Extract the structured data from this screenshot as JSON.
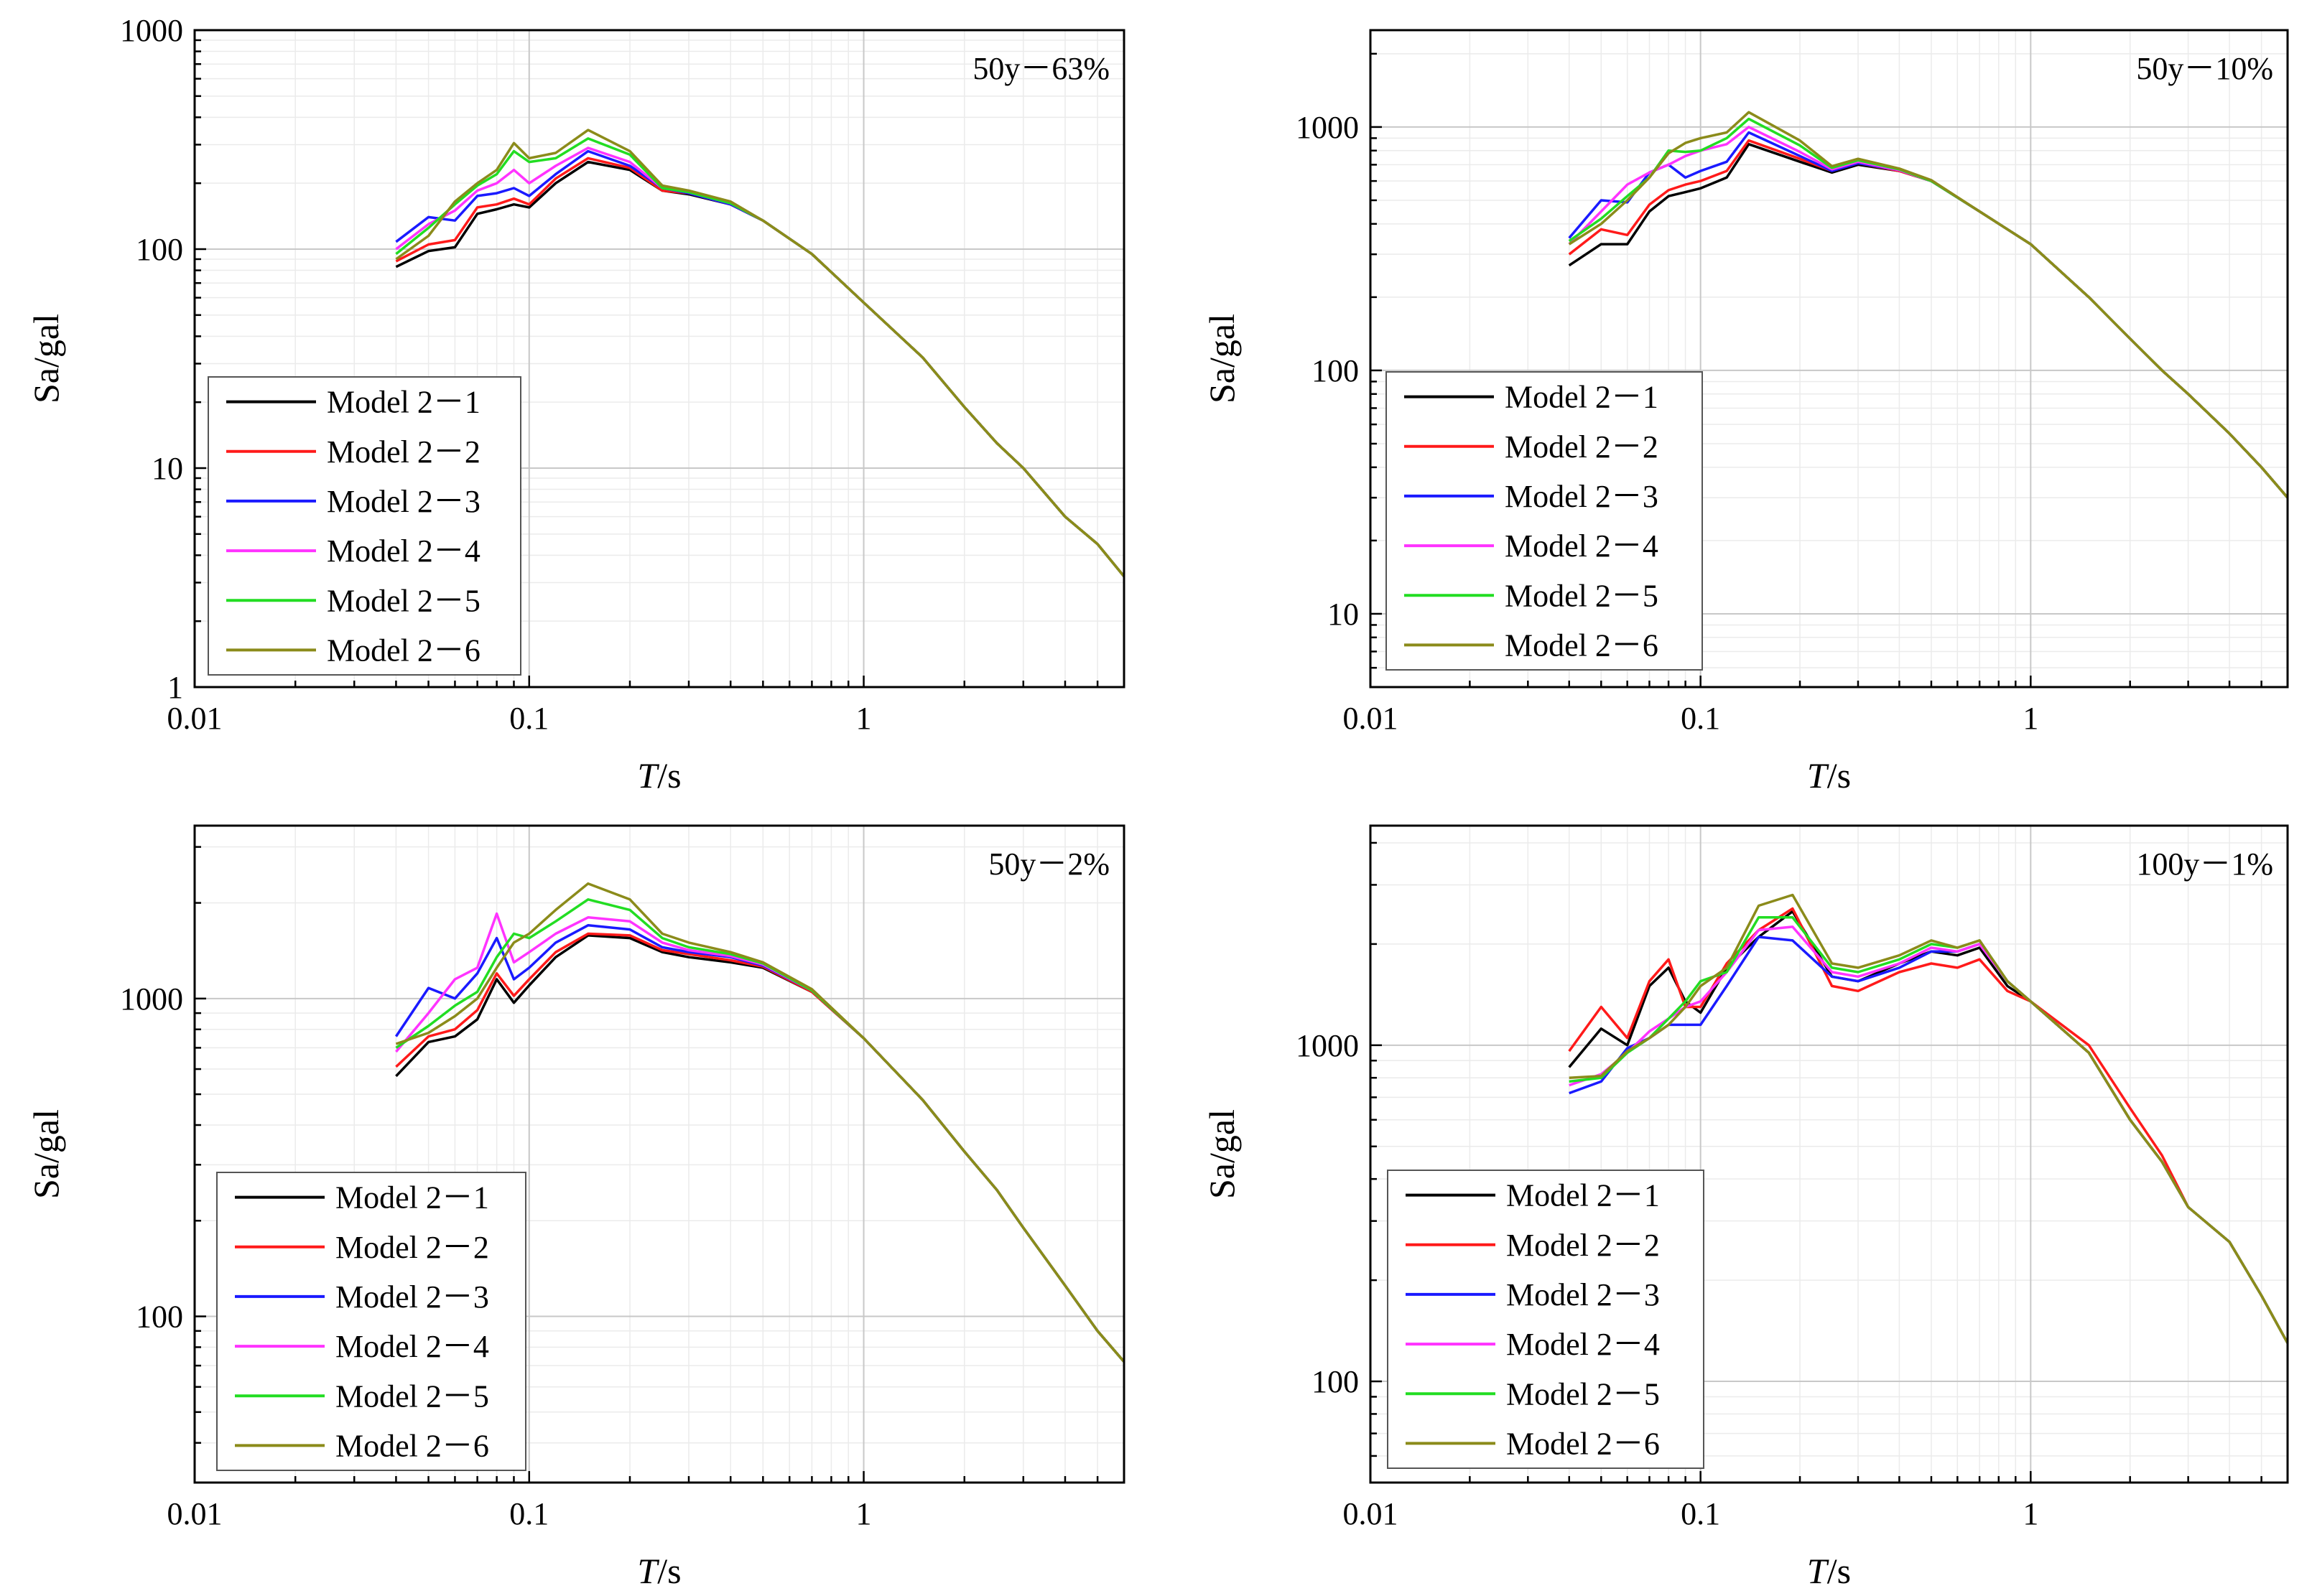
{
  "figure": {
    "series_names": [
      "Model 2－1",
      "Model 2－2",
      "Model 2－3",
      "Model 2－4",
      "Model 2－5",
      "Model 2－6"
    ],
    "series_colors": [
      "#000000",
      "#ff1a1a",
      "#1a1aff",
      "#ff33ff",
      "#22dd22",
      "#8b8b1a"
    ]
  },
  "chart_data": [
    {
      "type": "line",
      "title": "50y－63%",
      "xlabel_italic": "T",
      "xlabel_unit": "/s",
      "ylabel": "Sa/gal",
      "xscale": "log",
      "yscale": "log",
      "xlim": [
        0.01,
        6.0
      ],
      "ylim": [
        1,
        1000
      ],
      "xticks": [
        {
          "v": 0.01,
          "label": "0.01"
        },
        {
          "v": 0.1,
          "label": "0.1"
        },
        {
          "v": 1,
          "label": "1"
        }
      ],
      "yticks": [
        {
          "v": 1,
          "label": "1"
        },
        {
          "v": 10,
          "label": "10"
        },
        {
          "v": 100,
          "label": "100"
        },
        {
          "v": 1000,
          "label": "1000"
        }
      ],
      "legend_position": "bottom-left",
      "x": [
        0.04,
        0.05,
        0.06,
        0.07,
        0.08,
        0.09,
        0.1,
        0.12,
        0.15,
        0.2,
        0.25,
        0.3,
        0.4,
        0.5,
        0.7,
        1.0,
        1.5,
        2.0,
        2.5,
        3.0,
        4.0,
        5.0,
        6.0
      ],
      "series": [
        {
          "name": "Model 2－1",
          "values": [
            83,
            98,
            102,
            145,
            152,
            160,
            155,
            200,
            250,
            230,
            185,
            178,
            160,
            135,
            95,
            57,
            32,
            19,
            13,
            10,
            6,
            4.5,
            3.2
          ]
        },
        {
          "name": "Model 2－2",
          "values": [
            88,
            105,
            110,
            155,
            160,
            170,
            160,
            210,
            260,
            235,
            185,
            180,
            160,
            135,
            95,
            57,
            32,
            19,
            13,
            10,
            6,
            4.5,
            3.2
          ]
        },
        {
          "name": "Model 2－3",
          "values": [
            108,
            140,
            135,
            175,
            180,
            190,
            175,
            220,
            280,
            240,
            190,
            180,
            160,
            135,
            95,
            57,
            32,
            19,
            13,
            10,
            6,
            4.5,
            3.2
          ]
        },
        {
          "name": "Model 2－4",
          "values": [
            100,
            130,
            150,
            185,
            200,
            230,
            200,
            240,
            290,
            250,
            190,
            182,
            162,
            135,
            95,
            57,
            32,
            19,
            13,
            10,
            6,
            4.5,
            3.2
          ]
        },
        {
          "name": "Model 2－5",
          "values": [
            95,
            125,
            160,
            195,
            220,
            280,
            250,
            260,
            320,
            270,
            190,
            182,
            162,
            135,
            95,
            57,
            32,
            19,
            13,
            10,
            6,
            4.5,
            3.2
          ]
        },
        {
          "name": "Model 2－6",
          "values": [
            90,
            115,
            165,
            200,
            230,
            305,
            260,
            275,
            350,
            280,
            195,
            185,
            165,
            135,
            95,
            57,
            32,
            19,
            13,
            10,
            6,
            4.5,
            3.2
          ]
        }
      ]
    },
    {
      "type": "line",
      "title": "50y－10%",
      "xlabel_italic": "T",
      "xlabel_unit": "/s",
      "ylabel": "Sa/gal",
      "xscale": "log",
      "yscale": "log",
      "xlim": [
        0.01,
        6.0
      ],
      "ylim": [
        5,
        2500
      ],
      "xticks": [
        {
          "v": 0.01,
          "label": "0.01"
        },
        {
          "v": 0.1,
          "label": "0.1"
        },
        {
          "v": 1,
          "label": "1"
        }
      ],
      "yticks": [
        {
          "v": 10,
          "label": "10"
        },
        {
          "v": 100,
          "label": "100"
        },
        {
          "v": 1000,
          "label": "1000"
        }
      ],
      "legend_position": "bottom-left",
      "x": [
        0.04,
        0.05,
        0.06,
        0.07,
        0.08,
        0.09,
        0.1,
        0.12,
        0.14,
        0.2,
        0.25,
        0.3,
        0.4,
        0.5,
        0.7,
        1.0,
        1.5,
        2.0,
        2.5,
        3.0,
        4.0,
        5.0,
        6.0
      ],
      "series": [
        {
          "name": "Model 2－1",
          "values": [
            270,
            330,
            330,
            450,
            520,
            540,
            560,
            620,
            850,
            720,
            650,
            700,
            660,
            600,
            450,
            330,
            200,
            135,
            100,
            80,
            55,
            40,
            30
          ]
        },
        {
          "name": "Model 2－2",
          "values": [
            300,
            380,
            360,
            480,
            550,
            580,
            600,
            660,
            880,
            740,
            660,
            710,
            660,
            600,
            450,
            330,
            200,
            135,
            100,
            80,
            55,
            40,
            30
          ]
        },
        {
          "name": "Model 2－3",
          "values": [
            350,
            500,
            490,
            650,
            700,
            620,
            660,
            720,
            950,
            760,
            660,
            710,
            665,
            600,
            450,
            330,
            200,
            135,
            100,
            80,
            55,
            40,
            30
          ]
        },
        {
          "name": "Model 2－4",
          "values": [
            330,
            450,
            580,
            650,
            700,
            760,
            800,
            850,
            1000,
            790,
            670,
            720,
            665,
            600,
            450,
            330,
            200,
            135,
            100,
            80,
            55,
            40,
            30
          ]
        },
        {
          "name": "Model 2－5",
          "values": [
            340,
            420,
            520,
            620,
            800,
            790,
            800,
            900,
            1080,
            840,
            680,
            730,
            670,
            600,
            450,
            330,
            200,
            135,
            100,
            80,
            55,
            40,
            30
          ]
        },
        {
          "name": "Model 2－6",
          "values": [
            330,
            400,
            500,
            620,
            780,
            860,
            900,
            950,
            1150,
            880,
            690,
            740,
            675,
            605,
            450,
            330,
            200,
            135,
            100,
            80,
            55,
            40,
            30
          ]
        }
      ]
    },
    {
      "type": "line",
      "title": "50y－2%",
      "xlabel_italic": "T",
      "xlabel_unit": "/s",
      "ylabel": "Sa/gal",
      "xscale": "log",
      "yscale": "log",
      "xlim": [
        0.01,
        6.0
      ],
      "ylim": [
        30,
        3500
      ],
      "xticks": [
        {
          "v": 0.01,
          "label": "0.01"
        },
        {
          "v": 0.1,
          "label": "0.1"
        },
        {
          "v": 1,
          "label": "1"
        }
      ],
      "yticks": [
        {
          "v": 100,
          "label": "100"
        },
        {
          "v": 1000,
          "label": "1000"
        }
      ],
      "legend_position": "bottom-left",
      "x": [
        0.04,
        0.05,
        0.06,
        0.07,
        0.08,
        0.09,
        0.1,
        0.12,
        0.15,
        0.2,
        0.25,
        0.3,
        0.4,
        0.5,
        0.7,
        1.0,
        1.5,
        2.0,
        2.5,
        3.0,
        4.0,
        5.0,
        6.0
      ],
      "series": [
        {
          "name": "Model 2－1",
          "values": [
            570,
            730,
            760,
            860,
            1150,
            970,
            1100,
            1350,
            1580,
            1550,
            1400,
            1350,
            1300,
            1250,
            1050,
            750,
            480,
            330,
            250,
            190,
            125,
            90,
            72
          ]
        },
        {
          "name": "Model 2－2",
          "values": [
            610,
            760,
            800,
            920,
            1200,
            1020,
            1150,
            1400,
            1600,
            1580,
            1420,
            1380,
            1320,
            1260,
            1050,
            750,
            480,
            330,
            250,
            190,
            125,
            90,
            72
          ]
        },
        {
          "name": "Model 2－3",
          "values": [
            760,
            1080,
            1000,
            1200,
            1550,
            1150,
            1250,
            1500,
            1700,
            1650,
            1450,
            1400,
            1350,
            1270,
            1060,
            750,
            480,
            330,
            250,
            190,
            125,
            90,
            72
          ]
        },
        {
          "name": "Model 2－4",
          "values": [
            680,
            900,
            1150,
            1250,
            1850,
            1300,
            1400,
            1600,
            1800,
            1750,
            1500,
            1420,
            1360,
            1280,
            1060,
            750,
            480,
            330,
            250,
            190,
            125,
            90,
            72
          ]
        },
        {
          "name": "Model 2－5",
          "values": [
            700,
            820,
            950,
            1050,
            1350,
            1600,
            1550,
            1750,
            2050,
            1900,
            1550,
            1450,
            1380,
            1290,
            1060,
            750,
            480,
            330,
            250,
            190,
            125,
            90,
            72
          ]
        },
        {
          "name": "Model 2－6",
          "values": [
            720,
            780,
            880,
            1000,
            1250,
            1500,
            1600,
            1900,
            2300,
            2050,
            1600,
            1500,
            1400,
            1300,
            1070,
            750,
            480,
            330,
            250,
            190,
            125,
            90,
            72
          ]
        }
      ]
    },
    {
      "type": "line",
      "title": "100y－1%",
      "xlabel_italic": "T",
      "xlabel_unit": "/s",
      "ylabel": "Sa/gal",
      "xscale": "log",
      "yscale": "log",
      "xlim": [
        0.01,
        6.0
      ],
      "ylim": [
        50,
        4500
      ],
      "xticks": [
        {
          "v": 0.01,
          "label": "0.01"
        },
        {
          "v": 0.1,
          "label": "0.1"
        },
        {
          "v": 1,
          "label": "1"
        }
      ],
      "yticks": [
        {
          "v": 100,
          "label": "100"
        },
        {
          "v": 1000,
          "label": "1000"
        }
      ],
      "legend_position": "bottom-left",
      "x": [
        0.04,
        0.05,
        0.06,
        0.07,
        0.08,
        0.09,
        0.1,
        0.12,
        0.15,
        0.19,
        0.25,
        0.3,
        0.4,
        0.5,
        0.6,
        0.7,
        0.85,
        1.0,
        1.5,
        2.0,
        2.5,
        3.0,
        4.0,
        5.0,
        6.0
      ],
      "series": [
        {
          "name": "Model 2－1",
          "values": [
            860,
            1120,
            1000,
            1500,
            1700,
            1350,
            1250,
            1700,
            2100,
            2500,
            1600,
            1550,
            1750,
            1900,
            1850,
            1950,
            1500,
            1350,
            950,
            600,
            450,
            330,
            260,
            180,
            130
          ]
        },
        {
          "name": "Model 2－2",
          "values": [
            960,
            1300,
            1050,
            1550,
            1800,
            1300,
            1300,
            1750,
            2200,
            2550,
            1500,
            1450,
            1650,
            1750,
            1700,
            1800,
            1450,
            1350,
            1000,
            650,
            470,
            330,
            260,
            180,
            130
          ]
        },
        {
          "name": "Model 2－3",
          "values": [
            720,
            780,
            980,
            1050,
            1150,
            1150,
            1150,
            1500,
            2100,
            2050,
            1600,
            1550,
            1700,
            1900,
            1900,
            2000,
            1550,
            1350,
            950,
            600,
            450,
            330,
            260,
            180,
            130
          ]
        },
        {
          "name": "Model 2－4",
          "values": [
            760,
            820,
            950,
            1100,
            1200,
            1300,
            1350,
            1650,
            2200,
            2250,
            1650,
            1600,
            1750,
            1950,
            1900,
            2000,
            1550,
            1350,
            950,
            600,
            450,
            330,
            260,
            180,
            130
          ]
        },
        {
          "name": "Model 2－5",
          "values": [
            780,
            800,
            950,
            1050,
            1200,
            1350,
            1550,
            1650,
            2400,
            2400,
            1700,
            1650,
            1800,
            2000,
            1950,
            2050,
            1550,
            1350,
            950,
            600,
            450,
            330,
            260,
            180,
            130
          ]
        },
        {
          "name": "Model 2－6",
          "values": [
            800,
            810,
            960,
            1050,
            1150,
            1300,
            1500,
            1700,
            2600,
            2800,
            1750,
            1700,
            1850,
            2050,
            1950,
            2050,
            1550,
            1350,
            950,
            600,
            450,
            330,
            260,
            180,
            130
          ]
        }
      ]
    }
  ]
}
